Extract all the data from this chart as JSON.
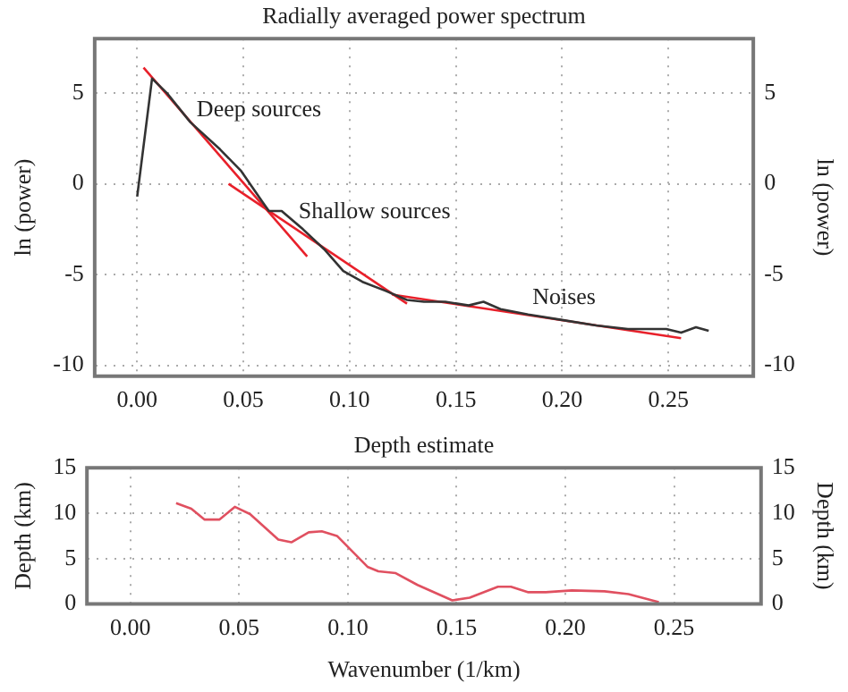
{
  "chart_data": [
    {
      "type": "line",
      "title": "Radially averaged power spectrum",
      "ylabel": "ln (power)",
      "y2label": "ln (power)",
      "xlim": [
        -0.02,
        0.29
      ],
      "xticks": [
        {
          "value": 0,
          "label": "0.00"
        },
        0.05,
        {
          "value": 0.1,
          "label": "0.10"
        },
        0.15,
        {
          "value": 0.2,
          "label": "0.20"
        },
        0.25
      ],
      "ylim": [
        -10.6,
        8
      ],
      "yticks": [
        -10,
        -5,
        0,
        5
      ],
      "y2lim": [
        -10.6,
        8
      ],
      "y2ticks": [
        -10,
        -5,
        0,
        5
      ],
      "grid": true,
      "marker": "none",
      "line_style": "solid",
      "annotations": [
        {
          "text": "Deep sources",
          "x": 0.028,
          "y": 3.2
        },
        {
          "text": "Shallow sources",
          "x": 0.076,
          "y": -2.4
        },
        {
          "text": "Noises",
          "x": 0.186,
          "y": -7.1
        }
      ],
      "series": [
        {
          "color": "#333333",
          "x": [
            0,
            0.007,
            0.014,
            0.025,
            0.039,
            0.049,
            0.059,
            0.062,
            0.068,
            0.078,
            0.088,
            0.097,
            0.106,
            0.117,
            0.127,
            0.135,
            0.145,
            0.156,
            0.163,
            0.171,
            0.184,
            0.2,
            0.216,
            0.231,
            0.249,
            0.256,
            0.263,
            0.269
          ],
          "values": [
            -0.7,
            5.8,
            5.0,
            3.4,
            1.9,
            0.7,
            -1.0,
            -1.5,
            -1.5,
            -2.5,
            -3.6,
            -4.8,
            -5.4,
            -5.9,
            -6.4,
            -6.5,
            -6.5,
            -6.7,
            -6.5,
            -6.9,
            -7.2,
            -7.5,
            -7.8,
            -8.0,
            -8.0,
            -8.2,
            -7.9,
            -8.1
          ]
        },
        {
          "color": "#e8202a",
          "x": [
            0.003,
            0.08
          ],
          "values": [
            6.4,
            -4.0
          ]
        },
        {
          "color": "#e8202a",
          "x": [
            0.043,
            0.127
          ],
          "values": [
            0.0,
            -6.6
          ]
        },
        {
          "color": "#e8202a",
          "x": [
            0.12,
            0.256
          ],
          "values": [
            -6.1,
            -8.5
          ]
        }
      ]
    },
    {
      "type": "line",
      "title": "Depth estimate",
      "xlabel": "Wavenumber (1/km)",
      "ylabel": "Depth (km)",
      "y2label": "Depth (km)",
      "xlim": [
        -0.02,
        0.29
      ],
      "xticks": [
        {
          "value": 0,
          "label": "0.00"
        },
        0.05,
        {
          "value": 0.1,
          "label": "0.10"
        },
        0.15,
        {
          "value": 0.2,
          "label": "0.20"
        },
        0.25
      ],
      "ylim": [
        0,
        15
      ],
      "yticks": [
        0,
        5,
        10,
        15
      ],
      "y2lim": [
        0,
        15
      ],
      "y2ticks": [
        0,
        5,
        10,
        15
      ],
      "grid": true,
      "marker": "none",
      "line_style": "solid",
      "series": [
        {
          "color": "#e05060",
          "x": [
            0.021,
            0.028,
            0.034,
            0.041,
            0.048,
            0.055,
            0.068,
            0.074,
            0.082,
            0.088,
            0.095,
            0.109,
            0.114,
            0.122,
            0.132,
            0.148,
            0.156,
            0.169,
            0.175,
            0.183,
            0.191,
            0.203,
            0.218,
            0.229,
            0.243
          ],
          "values": [
            11.1,
            10.5,
            9.3,
            9.3,
            10.7,
            9.9,
            7.1,
            6.8,
            7.9,
            8.0,
            7.5,
            4.1,
            3.6,
            3.4,
            2.1,
            0.4,
            0.7,
            1.9,
            1.9,
            1.3,
            1.3,
            1.5,
            1.4,
            1.1,
            0.2
          ]
        }
      ]
    }
  ]
}
